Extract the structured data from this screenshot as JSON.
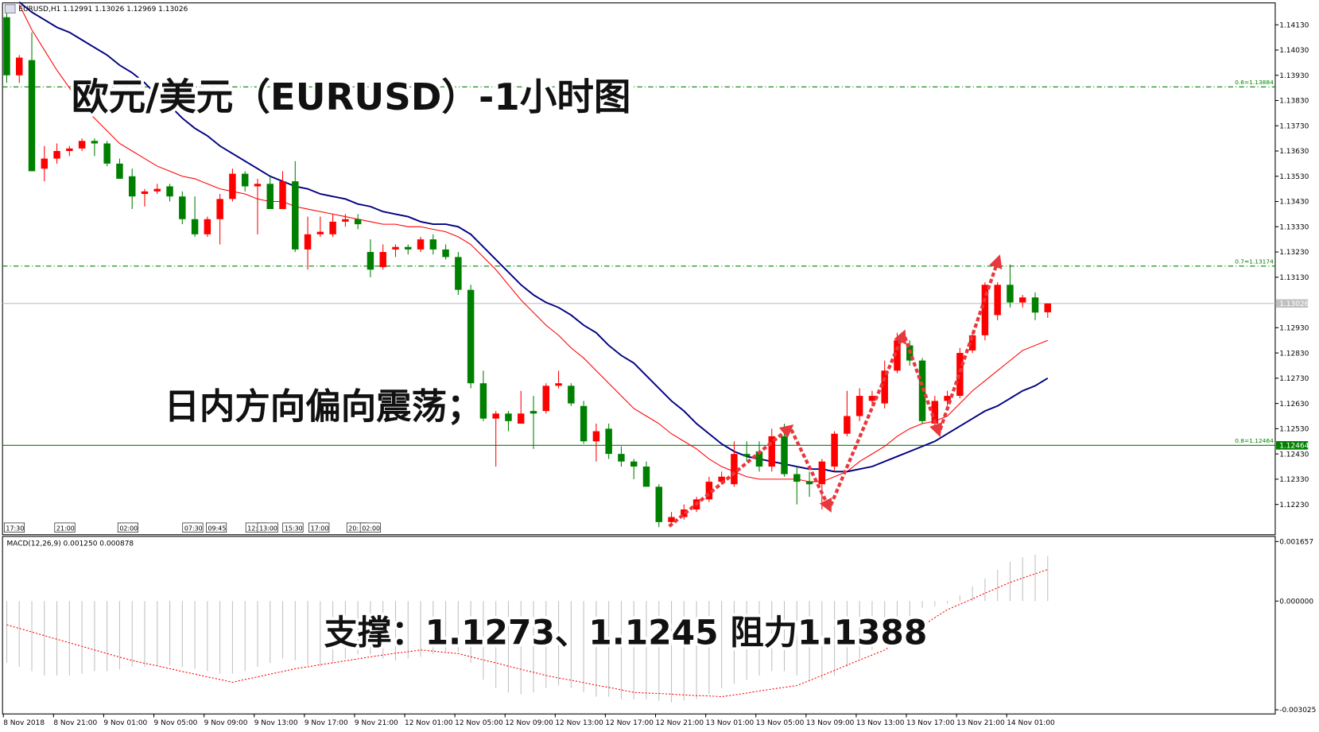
{
  "chart_data": {
    "type": "candlestick",
    "header": "EURUSD,H1  1.12991 1.13026 1.12969 1.13026",
    "annotations": [
      "欧元/美元（EURUSD）-1小时图",
      "日内方向偏向震荡；",
      "支撑：1.1273、1.1245  阻力1.1388"
    ],
    "categories": [
      "8 Nov 2018",
      null,
      null,
      null,
      "8 Nov 21:00",
      null,
      null,
      null,
      "9 Nov 01:00",
      null,
      null,
      null,
      "9 Nov 05:00",
      null,
      null,
      null,
      "9 Nov 09:00",
      null,
      null,
      null,
      "9 Nov 13:00",
      null,
      null,
      null,
      "9 Nov 17:00",
      null,
      null,
      null,
      "9 Nov 21:00",
      null,
      null,
      null,
      "12 Nov 01:00",
      null,
      null,
      null,
      "12 Nov 05:00",
      null,
      null,
      null,
      "12 Nov 09:00",
      null,
      null,
      null,
      "12 Nov 13:00",
      null,
      null,
      null,
      "12 Nov 17:00",
      null,
      null,
      null,
      "12 Nov 21:00",
      null,
      null,
      null,
      "13 Nov 01:00",
      null,
      null,
      null,
      "13 Nov 05:00",
      null,
      null,
      null,
      "13 Nov 09:00",
      null,
      null,
      null,
      "13 Nov 13:00",
      null,
      null,
      null,
      "13 Nov 17:00",
      null,
      null,
      null,
      "13 Nov 21:00",
      null,
      null,
      null,
      "14 Nov 01:00",
      null,
      null,
      null
    ],
    "open": [
      1.1416,
      1.1393,
      1.1399,
      1.1356,
      1.136,
      1.1363,
      1.1364,
      1.1367,
      1.1366,
      1.1358,
      1.1353,
      1.1346,
      1.1347,
      1.1349,
      1.1345,
      1.1336,
      1.133,
      1.1336,
      1.1344,
      1.1354,
      1.1349,
      1.135,
      1.134,
      1.1351,
      1.1324,
      1.133,
      1.133,
      1.1335,
      1.1336,
      1.1323,
      1.1317,
      1.1324,
      1.1325,
      1.1324,
      1.1328,
      1.1324,
      1.1321,
      1.1308,
      1.1271,
      1.1257,
      1.1259,
      1.1255,
      1.126,
      1.126,
      1.127,
      1.127,
      1.1262,
      1.1248,
      1.1253,
      1.1243,
      1.124,
      1.1238,
      1.123,
      1.1216,
      1.1218,
      1.1221,
      1.1225,
      1.1232,
      1.1231,
      1.1243,
      1.1244,
      1.1238,
      1.125,
      1.1235,
      1.1232,
      1.1231,
      1.1238,
      1.1251,
      1.1258,
      1.1264,
      1.1263,
      1.1276,
      1.1286,
      1.128,
      1.1255,
      1.1264,
      1.1266,
      1.1284,
      1.129,
      1.1298,
      1.131,
      1.1303,
      1.1305,
      1.12991
    ],
    "high": [
      1.1421,
      1.1401,
      1.141,
      1.1365,
      1.1366,
      1.1365,
      1.1368,
      1.1368,
      1.1367,
      1.136,
      1.1356,
      1.1348,
      1.135,
      1.135,
      1.1347,
      1.1345,
      1.1337,
      1.1346,
      1.1356,
      1.1355,
      1.1352,
      1.1353,
      1.1355,
      1.1359,
      1.1337,
      1.1337,
      1.1338,
      1.1338,
      1.1338,
      1.1328,
      1.1326,
      1.1326,
      1.1326,
      1.1329,
      1.133,
      1.1326,
      1.1323,
      1.131,
      1.1276,
      1.126,
      1.126,
      1.1268,
      1.1266,
      1.1271,
      1.1276,
      1.1271,
      1.1264,
      1.1255,
      1.1255,
      1.1246,
      1.1241,
      1.124,
      1.1231,
      1.122,
      1.1223,
      1.1226,
      1.1234,
      1.1236,
      1.1248,
      1.1248,
      1.1248,
      1.1253,
      1.1255,
      1.1238,
      1.1236,
      1.1241,
      1.1252,
      1.1268,
      1.1269,
      1.1268,
      1.128,
      1.1291,
      1.1288,
      1.1281,
      1.1266,
      1.1268,
      1.1285,
      1.1291,
      1.1311,
      1.1311,
      1.1318,
      1.1306,
      1.1307,
      1.13026
    ],
    "low": [
      1.139,
      1.139,
      1.1355,
      1.1351,
      1.1358,
      1.1361,
      1.1363,
      1.1361,
      1.1357,
      1.1352,
      1.134,
      1.1341,
      1.1346,
      1.1343,
      1.1334,
      1.1329,
      1.1329,
      1.1326,
      1.1343,
      1.1347,
      1.133,
      1.134,
      1.134,
      1.1323,
      1.1316,
      1.1329,
      1.1329,
      1.1333,
      1.1332,
      1.1313,
      1.1316,
      1.1321,
      1.1322,
      1.1323,
      1.1322,
      1.132,
      1.1306,
      1.1269,
      1.1256,
      1.1238,
      1.1252,
      1.1255,
      1.1245,
      1.1259,
      1.1269,
      1.1262,
      1.1247,
      1.124,
      1.1241,
      1.1238,
      1.1233,
      1.123,
      1.1214,
      1.1215,
      1.1217,
      1.122,
      1.1224,
      1.1231,
      1.123,
      1.124,
      1.1236,
      1.1236,
      1.1234,
      1.1223,
      1.1226,
      1.1221,
      1.1236,
      1.125,
      1.1256,
      1.1262,
      1.1261,
      1.1275,
      1.1278,
      1.1255,
      1.1253,
      1.1262,
      1.1265,
      1.1283,
      1.1288,
      1.1296,
      1.1301,
      1.1301,
      1.1296,
      1.12969
    ],
    "close": [
      1.1393,
      1.14,
      1.1355,
      1.136,
      1.1363,
      1.1364,
      1.1367,
      1.1366,
      1.1358,
      1.1352,
      1.1345,
      1.1347,
      1.1348,
      1.1345,
      1.1336,
      1.133,
      1.1336,
      1.1344,
      1.1354,
      1.1349,
      1.135,
      1.134,
      1.1351,
      1.1324,
      1.133,
      1.1331,
      1.1335,
      1.1336,
      1.1334,
      1.1316,
      1.1323,
      1.1325,
      1.1324,
      1.1328,
      1.1324,
      1.1321,
      1.1308,
      1.1271,
      1.1257,
      1.1259,
      1.1256,
      1.1259,
      1.1259,
      1.127,
      1.1271,
      1.1263,
      1.1248,
      1.1252,
      1.1243,
      1.124,
      1.1238,
      1.123,
      1.1216,
      1.1218,
      1.1221,
      1.1225,
      1.1232,
      1.1234,
      1.1243,
      1.1242,
      1.1238,
      1.125,
      1.1235,
      1.1232,
      1.1231,
      1.124,
      1.1251,
      1.1258,
      1.1266,
      1.1266,
      1.1276,
      1.1288,
      1.128,
      1.1256,
      1.1264,
      1.1266,
      1.1283,
      1.129,
      1.131,
      1.131,
      1.1303,
      1.1305,
      1.1299,
      1.13026
    ],
    "up_color": "#ff0000",
    "down_color": "#008000",
    "lines": [
      {
        "color": "#ff0000",
        "values": [
          null,
          1.1421,
          1.1411,
          1.1403,
          1.1395,
          1.1388,
          1.1381,
          1.1376,
          1.1371,
          1.1366,
          1.1363,
          1.136,
          1.1357,
          1.1355,
          1.1353,
          1.1352,
          1.135,
          1.1348,
          1.1347,
          1.1346,
          1.1344,
          1.1343,
          1.1343,
          1.1341,
          1.134,
          1.1339,
          1.1338,
          1.1337,
          1.1336,
          1.1335,
          1.1334,
          1.1334,
          1.1333,
          1.1333,
          1.1332,
          1.1331,
          1.1329,
          1.1326,
          1.1321,
          1.1316,
          1.131,
          1.1304,
          1.1299,
          1.1294,
          1.129,
          1.1285,
          1.1281,
          1.1276,
          1.1271,
          1.1266,
          1.1261,
          1.1258,
          1.1255,
          1.1251,
          1.1248,
          1.1245,
          1.1241,
          1.1238,
          1.1236,
          1.1234,
          1.1233,
          1.1233,
          1.1233,
          1.1233,
          1.1232,
          1.1232,
          1.1234,
          1.1236,
          1.124,
          1.1243,
          1.1246,
          1.125,
          1.1253,
          1.1255,
          1.1256,
          1.1258,
          1.1263,
          1.1268,
          1.1272,
          1.1276,
          1.128,
          1.1284,
          1.1286,
          1.1288
        ]
      },
      {
        "color": "#000080",
        "values": [
          null,
          1.1422,
          1.1418,
          1.1415,
          1.1412,
          1.141,
          1.1407,
          1.1404,
          1.1401,
          1.1397,
          1.1394,
          1.139,
          1.1385,
          1.1381,
          1.1376,
          1.1372,
          1.1369,
          1.1365,
          1.1362,
          1.1359,
          1.1356,
          1.1353,
          1.1351,
          1.1349,
          1.1348,
          1.1346,
          1.1345,
          1.1344,
          1.1342,
          1.1341,
          1.1339,
          1.1338,
          1.1337,
          1.1335,
          1.1334,
          1.1334,
          1.1333,
          1.133,
          1.1325,
          1.132,
          1.1315,
          1.131,
          1.1306,
          1.1303,
          1.1301,
          1.1298,
          1.1294,
          1.1291,
          1.1286,
          1.1282,
          1.1279,
          1.1274,
          1.1269,
          1.1264,
          1.126,
          1.1255,
          1.1251,
          1.1247,
          1.1244,
          1.1242,
          1.1241,
          1.124,
          1.1239,
          1.1238,
          1.1237,
          1.1237,
          1.1236,
          1.1236,
          1.1237,
          1.1238,
          1.124,
          1.1242,
          1.1244,
          1.1246,
          1.1248,
          1.1251,
          1.1254,
          1.1257,
          1.126,
          1.1262,
          1.1265,
          1.1268,
          1.127,
          1.1273
        ]
      }
    ],
    "ylim": [
      1.1211,
      1.1421
    ],
    "yticks": [
      {
        "value": 1.1413,
        "label": "1.14130"
      },
      {
        "value": 1.1403,
        "label": "1.14030"
      },
      {
        "value": 1.1393,
        "label": "1.13930"
      },
      {
        "value": 1.1383,
        "label": "1.13830"
      },
      {
        "value": 1.1373,
        "label": "1.13730"
      },
      {
        "value": 1.1363,
        "label": "1.13630"
      },
      {
        "value": 1.1353,
        "label": "1.13530"
      },
      {
        "value": 1.1343,
        "label": "1.13430"
      },
      {
        "value": 1.1333,
        "label": "1.13330"
      },
      {
        "value": 1.1323,
        "label": "1.13230"
      },
      {
        "value": 1.1313,
        "label": "1.13130"
      },
      {
        "value": 1.1293,
        "label": "1.12930"
      },
      {
        "value": 1.1283,
        "label": "1.12830"
      },
      {
        "value": 1.1273,
        "label": "1.12730"
      },
      {
        "value": 1.1263,
        "label": "1.12630"
      },
      {
        "value": 1.1253,
        "label": "1.12530"
      },
      {
        "value": 1.1243,
        "label": "1.12430"
      },
      {
        "value": 1.1233,
        "label": "1.12330"
      },
      {
        "value": 1.1223,
        "label": "1.12230"
      }
    ],
    "levels": [
      {
        "value": 1.13884,
        "label": "0.6=1.13884",
        "color": "#008000",
        "dash": true
      },
      {
        "value": 1.13174,
        "label": "0.7=1.13174",
        "color": "#008000",
        "dash": true
      },
      {
        "value": 1.12464,
        "label": "0.8=1.12464",
        "color": "#008000",
        "dash": false,
        "axis_label": "1.12464"
      }
    ],
    "current_price": {
      "value": 1.13026,
      "label": "1.13026",
      "color": "#c0c0c0"
    },
    "events": [
      "17:30",
      "21:00",
      "02:00",
      "07:30",
      "09:45",
      "12:",
      "13:00",
      "15:30",
      "17:00",
      "20:",
      "02:00"
    ],
    "macd": {
      "title": "MACD(12,26,9) 0.001250 0.000878",
      "histogram_color": "#c0c0c0",
      "signal_color": "#ff0000",
      "ylim": [
        -0.00314,
        0.0018
      ],
      "yticks": [
        {
          "value": 0.001657,
          "label": "0.001657"
        },
        {
          "value": 0,
          "label": "0.000000"
        },
        {
          "value": -0.003025,
          "label": "-0.003025"
        }
      ],
      "histogram": [
        -0.00172,
        -0.00183,
        -0.00195,
        -0.00207,
        -0.00207,
        -0.00207,
        -0.00202,
        -0.00195,
        -0.00195,
        -0.0019,
        -0.00183,
        -0.00183,
        -0.00179,
        -0.00179,
        -0.00183,
        -0.00188,
        -0.00195,
        -0.00202,
        -0.00202,
        -0.00195,
        -0.00183,
        -0.00172,
        -0.0016,
        -0.00165,
        -0.00179,
        -0.00183,
        -0.00172,
        -0.0016,
        -0.00148,
        -0.00148,
        -0.0016,
        -0.00165,
        -0.0016,
        -0.00155,
        -0.00148,
        -0.00141,
        -0.00141,
        -0.00172,
        -0.00219,
        -0.00242,
        -0.00254,
        -0.00259,
        -0.00254,
        -0.00242,
        -0.00235,
        -0.00242,
        -0.00254,
        -0.00266,
        -0.00266,
        -0.00273,
        -0.00273,
        -0.00273,
        -0.00277,
        -0.00282,
        -0.00277,
        -0.00273,
        -0.00259,
        -0.00242,
        -0.0023,
        -0.00219,
        -0.00207,
        -0.00195,
        -0.00195,
        -0.00207,
        -0.00219,
        -0.00219,
        -0.00207,
        -0.00183,
        -0.0016,
        -0.00136,
        -0.00113,
        -0.00078,
        -0.00042,
        -0.00019,
        -0.00014,
        -7e-05,
        0.00016,
        0.0004,
        0.00063,
        0.00087,
        0.0011,
        0.00122,
        0.00129,
        0.00125
      ],
      "signal": [
        -0.00066,
        -0.00076,
        -0.00086,
        -0.00096,
        -0.00106,
        -0.00116,
        -0.00126,
        -0.00136,
        -0.00146,
        -0.00156,
        -0.00165,
        -0.00173,
        -0.0018,
        -0.00188,
        -0.00196,
        -0.00203,
        -0.00211,
        -0.00218,
        -0.00226,
        -0.00218,
        -0.00211,
        -0.00203,
        -0.00196,
        -0.00188,
        -0.00183,
        -0.00177,
        -0.00172,
        -0.00166,
        -0.00161,
        -0.00155,
        -0.0015,
        -0.00145,
        -0.00141,
        -0.00136,
        -0.00139,
        -0.00143,
        -0.00146,
        -0.00155,
        -0.00164,
        -0.00172,
        -0.00181,
        -0.0019,
        -0.00198,
        -0.00207,
        -0.00214,
        -0.0022,
        -0.00227,
        -0.00234,
        -0.0024,
        -0.00247,
        -0.00254,
        -0.00256,
        -0.00257,
        -0.00259,
        -0.00261,
        -0.00263,
        -0.00264,
        -0.00266,
        -0.00261,
        -0.00256,
        -0.0025,
        -0.00245,
        -0.0024,
        -0.00235,
        -0.00221,
        -0.00207,
        -0.00193,
        -0.00178,
        -0.00164,
        -0.0015,
        -0.00136,
        -0.00114,
        -0.00091,
        -0.00069,
        -0.00046,
        -0.00024,
        -9e-05,
        6e-05,
        0.00022,
        0.00037,
        0.00052,
        0.00064,
        0.00076,
        0.000878
      ]
    }
  }
}
